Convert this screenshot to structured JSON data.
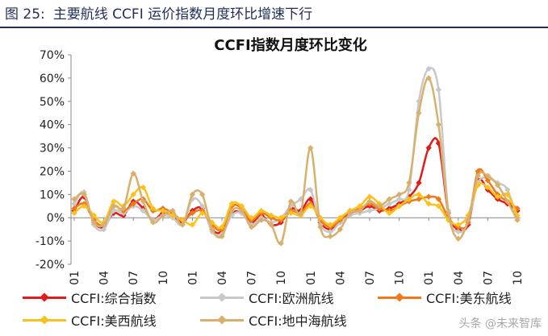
{
  "caption": {
    "label": "图 25:",
    "text": "主要航线 CCFI 运价指数月度环比增速下行"
  },
  "watermark": "头条 @未来智库",
  "chart_data": {
    "type": "line",
    "title": "CCFI指数月度环比变化",
    "xlabel": "",
    "ylabel": "",
    "ylim": [
      -20,
      70
    ],
    "yticks": [
      "70%",
      "60%",
      "50%",
      "40%",
      "30%",
      "20%",
      "10%",
      "0%",
      "-10%",
      "-20%"
    ],
    "x": [
      "2018-01",
      "2018-02",
      "2018-03",
      "2018-04",
      "2018-05",
      "2018-06",
      "2018-07",
      "2018-08",
      "2018-09",
      "2018-10",
      "2018-11",
      "2018-12",
      "2019-01",
      "2019-02",
      "2019-03",
      "2019-04",
      "2019-05",
      "2019-06",
      "2019-07",
      "2019-08",
      "2019-09",
      "2019-10",
      "2019-11",
      "2019-12",
      "2020-01",
      "2020-02",
      "2020-03",
      "2020-04",
      "2020-05",
      "2020-06",
      "2020-07",
      "2020-08",
      "2020-09",
      "2020-10",
      "2020-11",
      "2020-12",
      "2021-01",
      "2021-02",
      "2021-03",
      "2021-04",
      "2021-05",
      "2021-06",
      "2021-07",
      "2021-08",
      "2021-09",
      "2021-10"
    ],
    "xticks": [
      "2018-01",
      "2018-04",
      "2018-07",
      "2018-10",
      "2019-01",
      "2019-04",
      "2019-07",
      "2019-10",
      "2020-01",
      "2020-04",
      "2020-07",
      "2020-10",
      "2021-01",
      "2021-04",
      "2021-07",
      "2021-10"
    ],
    "grid": false,
    "legend_position": "bottom",
    "series": [
      {
        "name": "CCFI:综合指数",
        "color": "#e01b1b",
        "values": [
          3,
          9,
          -2,
          -4,
          2,
          1,
          7,
          4,
          -1,
          2,
          1,
          -2,
          3,
          4,
          -5,
          -6,
          2,
          2,
          -2,
          1,
          -3,
          -2,
          4,
          3,
          8,
          -2,
          -5,
          -2,
          2,
          3,
          5,
          3,
          4,
          6,
          9,
          15,
          30,
          32,
          2,
          -5,
          -3,
          16,
          12,
          8,
          6,
          3
        ]
      },
      {
        "name": "CCFI:欧洲航线",
        "color": "#c8c8c8",
        "values": [
          6,
          11,
          -3,
          -5,
          3,
          2,
          5,
          3,
          -1,
          1,
          0,
          -3,
          8,
          5,
          -6,
          -7,
          1,
          2,
          -3,
          0,
          -2,
          0,
          5,
          8,
          12,
          -3,
          -6,
          -2,
          1,
          2,
          3,
          4,
          6,
          8,
          12,
          50,
          64,
          55,
          3,
          -6,
          -2,
          15,
          17,
          15,
          12,
          -1
        ]
      },
      {
        "name": "CCFI:美东航线",
        "color": "#f07a1a",
        "values": [
          4,
          6,
          -1,
          -3,
          5,
          3,
          6,
          8,
          3,
          4,
          2,
          -1,
          2,
          3,
          -3,
          -5,
          5,
          4,
          -1,
          2,
          0,
          -1,
          3,
          2,
          6,
          -1,
          -4,
          -1,
          3,
          4,
          6,
          4,
          3,
          5,
          7,
          8,
          9,
          8,
          0,
          -4,
          -2,
          20,
          16,
          10,
          7,
          4
        ]
      },
      {
        "name": "CCFI:美西航线",
        "color": "#fcc11c",
        "values": [
          2,
          5,
          1,
          -2,
          7,
          5,
          10,
          13,
          4,
          3,
          1,
          -1,
          -3,
          2,
          -2,
          -4,
          6,
          5,
          0,
          3,
          1,
          0,
          2,
          1,
          5,
          0,
          -3,
          0,
          3,
          5,
          9,
          6,
          2,
          5,
          8,
          10,
          6,
          5,
          -1,
          -3,
          1,
          14,
          13,
          9,
          10,
          1
        ]
      },
      {
        "name": "CCFI:地中海航线",
        "color": "#d9b06b",
        "values": [
          8,
          10,
          -2,
          -3,
          5,
          4,
          19,
          7,
          -2,
          1,
          3,
          -3,
          10,
          10,
          -5,
          -8,
          3,
          3,
          -4,
          -1,
          -3,
          -11,
          7,
          2,
          30,
          -4,
          -8,
          -5,
          2,
          3,
          7,
          5,
          8,
          10,
          15,
          45,
          60,
          40,
          2,
          -9,
          -1,
          18,
          18,
          14,
          7,
          -1
        ]
      }
    ]
  }
}
